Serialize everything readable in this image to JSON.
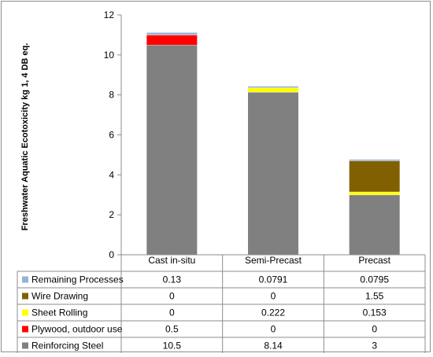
{
  "chart_data": {
    "type": "bar",
    "stacked": true,
    "ylabel": "Freshwater Aquatic Ecotoxicity  kg 1, 4 DB eq.",
    "xlabel": "",
    "title": "",
    "ylim": [
      0,
      12
    ],
    "yticks": [
      "0",
      "2",
      "4",
      "6",
      "8",
      "10",
      "12"
    ],
    "grid": false,
    "legend": "data-table",
    "categories": [
      "Cast in-situ",
      "Semi-Precast",
      "Precast"
    ],
    "series": [
      {
        "name": "Reinforcing Steel",
        "color": "#808080",
        "values": [
          10.5,
          8.14,
          3
        ],
        "labels": [
          "10.5",
          "8.14",
          "3"
        ]
      },
      {
        "name": "Plywood, outdoor use",
        "color": "#ff0000",
        "values": [
          0.5,
          0,
          0
        ],
        "labels": [
          "0.5",
          "0",
          "0"
        ]
      },
      {
        "name": "Sheet Rolling",
        "color": "#ffff00",
        "values": [
          0,
          0.222,
          0.153
        ],
        "labels": [
          "0",
          "0.222",
          "0.153"
        ]
      },
      {
        "name": "Wire Drawing",
        "color": "#806000",
        "values": [
          0,
          0,
          1.55
        ],
        "labels": [
          "0",
          "0",
          "1.55"
        ]
      },
      {
        "name": "Remaining Processes",
        "color": "#95b3d7",
        "values": [
          0.13,
          0.0791,
          0.0795
        ],
        "labels": [
          "0.13",
          "0.0791",
          "0.0795"
        ]
      }
    ]
  }
}
